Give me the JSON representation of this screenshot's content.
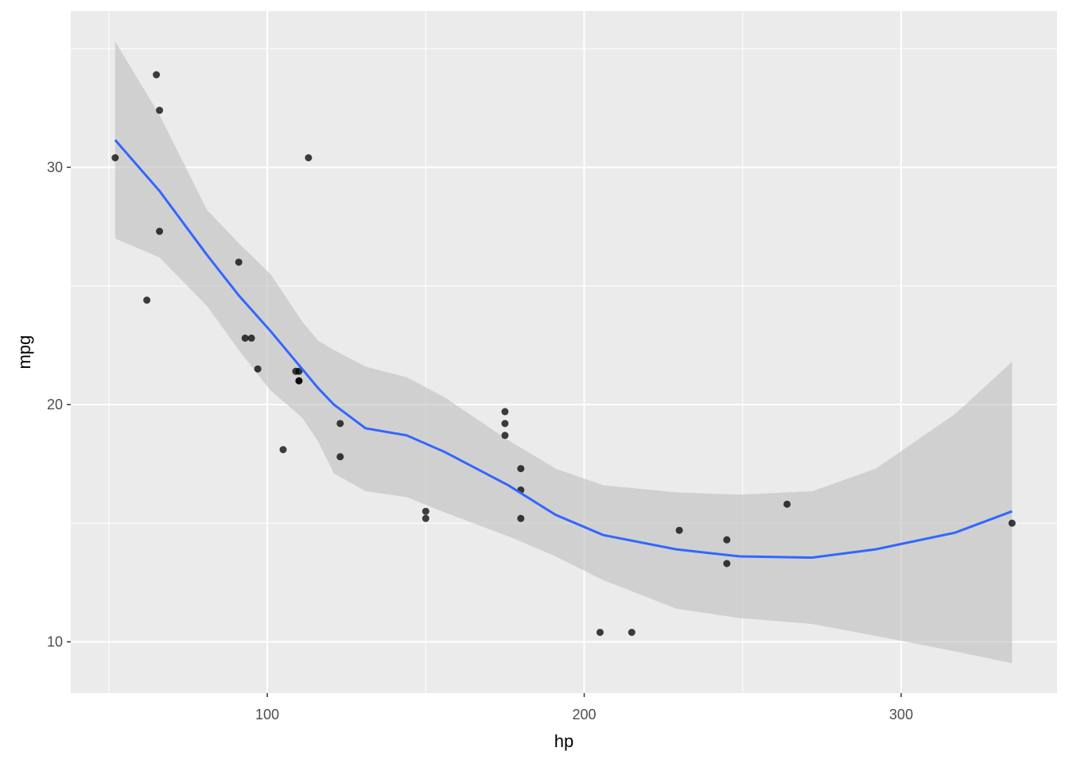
{
  "chart_data": {
    "type": "scatter",
    "title": "",
    "xlabel": "hp",
    "ylabel": "mpg",
    "xlim": [
      38,
      349.2
    ],
    "ylim": [
      7.84,
      36.58
    ],
    "xticks": [
      100,
      200,
      300
    ],
    "yticks": [
      10,
      20,
      30
    ],
    "xminor": [
      50,
      150,
      250
    ],
    "yminor": [
      15,
      25,
      35
    ],
    "grid": true,
    "colors": {
      "panel": "#EBEBEB",
      "grid": "#FFFFFF",
      "point": "#000000",
      "line": "#3366FF",
      "band": "#BEBEBE"
    },
    "points": [
      [
        110,
        21.0
      ],
      [
        110,
        21.0
      ],
      [
        93,
        22.8
      ],
      [
        110,
        21.4
      ],
      [
        175,
        18.7
      ],
      [
        105,
        18.1
      ],
      [
        245,
        14.3
      ],
      [
        62,
        24.4
      ],
      [
        95,
        22.8
      ],
      [
        123,
        19.2
      ],
      [
        123,
        17.8
      ],
      [
        180,
        16.4
      ],
      [
        180,
        17.3
      ],
      [
        180,
        15.2
      ],
      [
        205,
        10.4
      ],
      [
        215,
        10.4
      ],
      [
        230,
        14.7
      ],
      [
        66,
        32.4
      ],
      [
        52,
        30.4
      ],
      [
        65,
        33.9
      ],
      [
        97,
        21.5
      ],
      [
        150,
        15.5
      ],
      [
        150,
        15.2
      ],
      [
        245,
        13.3
      ],
      [
        175,
        19.2
      ],
      [
        66,
        27.3
      ],
      [
        91,
        26.0
      ],
      [
        113,
        30.4
      ],
      [
        264,
        15.8
      ],
      [
        175,
        19.7
      ],
      [
        335,
        15.0
      ],
      [
        109,
        21.4
      ]
    ],
    "smooth": {
      "method": "loess",
      "x": [
        52,
        66,
        81,
        91,
        101,
        111,
        116,
        121,
        131,
        144,
        156,
        176,
        191,
        206,
        229,
        249,
        272,
        292,
        317,
        335
      ],
      "y": [
        31.15,
        29.0,
        26.3,
        24.6,
        23.1,
        21.5,
        20.7,
        20.0,
        19.0,
        18.7,
        18.0,
        16.6,
        15.35,
        14.5,
        13.9,
        13.6,
        13.55,
        13.9,
        14.6,
        15.5
      ],
      "upper": [
        35.3,
        32.2,
        28.2,
        26.8,
        25.5,
        23.5,
        22.7,
        22.3,
        21.6,
        21.15,
        20.3,
        18.5,
        17.3,
        16.6,
        16.3,
        16.2,
        16.35,
        17.3,
        19.6,
        21.8
      ],
      "lower": [
        27.0,
        26.2,
        24.15,
        22.3,
        20.6,
        19.45,
        18.45,
        17.1,
        16.35,
        16.1,
        15.45,
        14.45,
        13.6,
        12.6,
        11.4,
        11.0,
        10.75,
        10.25,
        9.6,
        9.1
      ]
    }
  }
}
